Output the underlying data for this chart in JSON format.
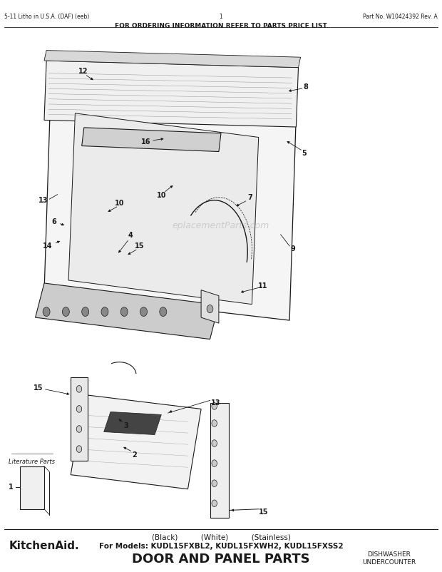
{
  "title": "DOOR AND PANEL PARTS",
  "subtitle": "For Models: KUDL15FXBL2, KUDL15FXWH2, KUDL15FXSS2",
  "subtitle2": "(Black)          (White)          (Stainless)",
  "brand": "KitchenAid.",
  "top_right_line1": "UNDERCOUNTER",
  "top_right_line2": "DISHWASHER",
  "bottom_center": "FOR ORDERING INFORMATION REFER TO PARTS PRICE LIST",
  "bottom_left": "5-11 Litho in U.S.A. (DAF) (eeb)",
  "bottom_middle": "1",
  "bottom_right": "Part No. W10424392 Rev. A",
  "watermark": "eplacementParts.com",
  "bg_color": "#ffffff",
  "line_color": "#1a1a1a"
}
